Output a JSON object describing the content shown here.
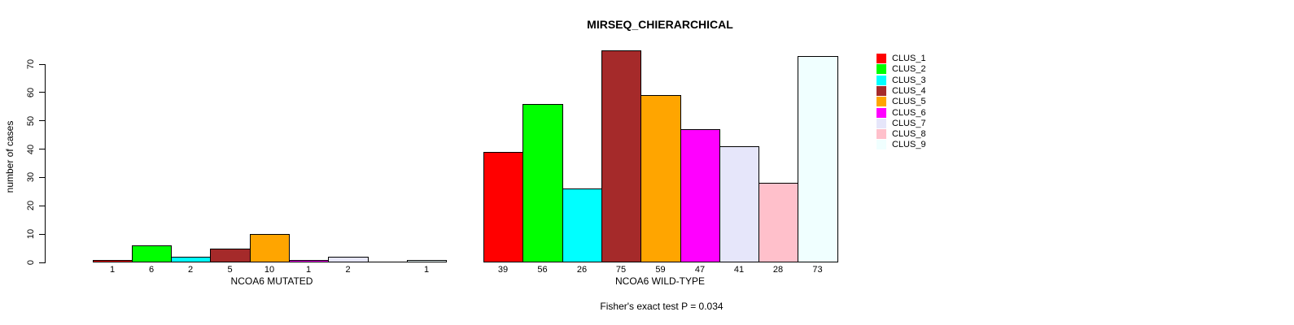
{
  "chart_data": {
    "type": "bar",
    "title": "MIRSEQ_CHIERARCHICAL",
    "ylabel": "number of cases",
    "ylim": [
      0,
      70
    ],
    "yticks": [
      0,
      10,
      20,
      30,
      40,
      50,
      60,
      70
    ],
    "categories": [
      "CLUS_1",
      "CLUS_2",
      "CLUS_3",
      "CLUS_4",
      "CLUS_5",
      "CLUS_6",
      "CLUS_7",
      "CLUS_8",
      "CLUS_9"
    ],
    "colors": [
      "#FF0000",
      "#00FF00",
      "#00FFFF",
      "#A52A2A",
      "#FFA500",
      "#FF00FF",
      "#E6E6FA",
      "#FFC0CB",
      "#F0FFFF"
    ],
    "series": [
      {
        "name": "NCOA6 MUTATED",
        "values": [
          1,
          6,
          2,
          5,
          10,
          1,
          2,
          0,
          1
        ]
      },
      {
        "name": "NCOA6 WILD-TYPE",
        "values": [
          39,
          56,
          26,
          75,
          59,
          47,
          41,
          28,
          73
        ]
      }
    ],
    "bar_labels": "values shown under each bar; zero bars unlabeled",
    "annotation": "Fisher's exact test P = 0.034",
    "legend_position": "right",
    "grid": false
  }
}
